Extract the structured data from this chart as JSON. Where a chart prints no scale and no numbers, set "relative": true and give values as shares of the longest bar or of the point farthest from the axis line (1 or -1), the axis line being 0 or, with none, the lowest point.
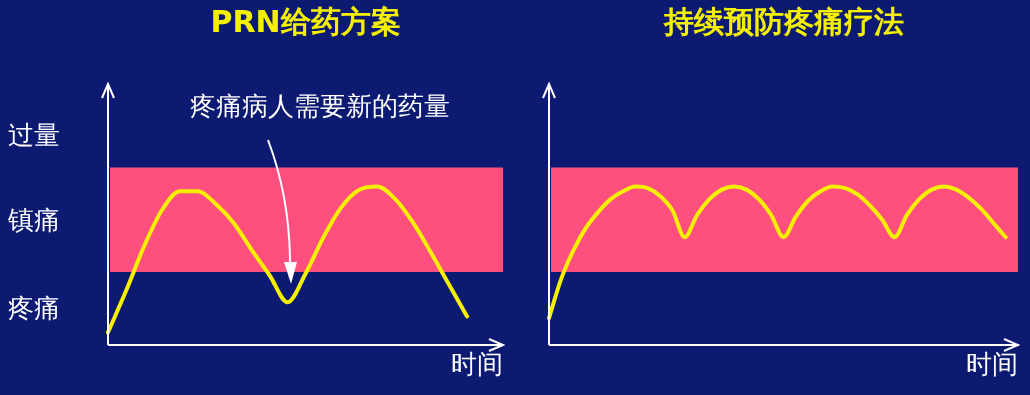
{
  "chart_data": [
    {
      "type": "line",
      "title": "PRN给药方案",
      "xlabel": "时间",
      "relative": true,
      "marker": "none",
      "legend": false,
      "categories": [
        null,
        null,
        null,
        null,
        null,
        null,
        null,
        null,
        null,
        null,
        null,
        null,
        null,
        null,
        null,
        null,
        null,
        null,
        null,
        null,
        null,
        null,
        null
      ],
      "series": [
        {
          "color": "#f5f000",
          "values": [
            0.08,
            0.34,
            0.62,
            0.85,
            0.97,
            0.97,
            0.89,
            0.77,
            0.6,
            0.44,
            0.27,
            0.45,
            0.68,
            0.87,
            0.98,
            1,
            0.92,
            0.77,
            0.58,
            0.38,
            0.18,
            null,
            null
          ]
        }
      ],
      "bands": [
        {
          "axis": "y",
          "from": 0.46,
          "to": 1.12,
          "color": "#ff4f7f"
        }
      ],
      "annotations": [
        "疼痛病人需要新的药量",
        "过量",
        "镇痛",
        "疼痛"
      ]
    },
    {
      "type": "line",
      "title": "持续预防疼痛疗法",
      "xlabel": "时间",
      "relative": true,
      "marker": "none",
      "legend": false,
      "categories": [
        null,
        null,
        null,
        null,
        null,
        null,
        null,
        null,
        null,
        null,
        null,
        null,
        null,
        null,
        null,
        null,
        null,
        null,
        null,
        null,
        null,
        null,
        null,
        null,
        null,
        null,
        null,
        null,
        null,
        null,
        null,
        null,
        null,
        null,
        null,
        null,
        null,
        null,
        null
      ],
      "series": [
        {
          "color": "#f5f000",
          "values": [
            0.17,
            0.42,
            0.6,
            0.74,
            0.84,
            0.92,
            0.97,
            1,
            0.99,
            0.94,
            0.85,
            0.68,
            0.82,
            0.92,
            0.98,
            1,
            0.98,
            0.92,
            0.82,
            0.68,
            0.81,
            0.91,
            0.97,
            1,
            0.99,
            0.95,
            0.88,
            0.79,
            0.68,
            0.82,
            0.92,
            0.98,
            1,
            0.98,
            0.93,
            0.86,
            0.77,
            0.68,
            null
          ]
        }
      ],
      "bands": [
        {
          "axis": "y",
          "from": 0.46,
          "to": 1.12,
          "color": "#ff4f7f"
        }
      ]
    }
  ]
}
